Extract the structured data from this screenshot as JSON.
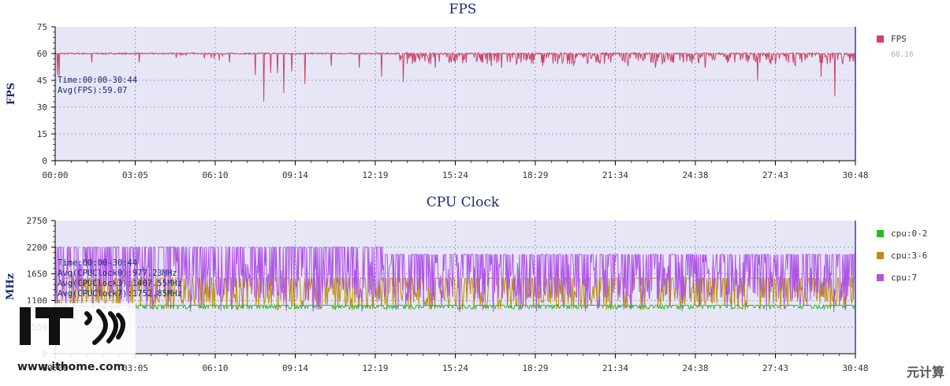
{
  "colors": {
    "plot_bg": "#e6e6f7",
    "grid": "#8a8ac8",
    "title": "#1a2a6c",
    "fps_line": "#cc4466",
    "cpu_0_2": "#22bb22",
    "cpu_3_6": "#bb8f00",
    "cpu_7": "#b054e6"
  },
  "chart_data": [
    {
      "type": "line",
      "title": "FPS",
      "ylabel": "FPS",
      "xlabel": "",
      "ylim": [
        0,
        75
      ],
      "yticks": [
        "75",
        "60",
        "45",
        "30",
        "15",
        "0"
      ],
      "xticks": [
        "00:00",
        "03:05",
        "06:10",
        "09:14",
        "12:19",
        "15:24",
        "18:29",
        "21:34",
        "24:38",
        "27:43",
        "30:48"
      ],
      "annotation": [
        "Time:00:00-30:44",
        "Avg(FPS):59.07"
      ],
      "legend_position": "right",
      "series": [
        {
          "name": "FPS",
          "legend_value": "60.16",
          "baseline": 60,
          "dips": [
            [
              0.3,
              48
            ],
            [
              0.5,
              47
            ],
            [
              4.6,
              55
            ],
            [
              10.5,
              55
            ],
            [
              21.8,
              55
            ],
            [
              25.0,
              48
            ],
            [
              26.1,
              33
            ],
            [
              26.9,
              49
            ],
            [
              27.8,
              49
            ],
            [
              28.6,
              38
            ],
            [
              29.6,
              50
            ],
            [
              31.2,
              43
            ],
            [
              34.5,
              53
            ],
            [
              38.0,
              52
            ],
            [
              40.8,
              47
            ],
            [
              43.5,
              44
            ],
            [
              45.0,
              55
            ],
            [
              46.9,
              54
            ],
            [
              47.5,
              52
            ],
            [
              49.5,
              55
            ],
            [
              54.5,
              53
            ],
            [
              55.8,
              52
            ],
            [
              60.9,
              53
            ],
            [
              62.8,
              54
            ],
            [
              64.8,
              53
            ],
            [
              67.6,
              55
            ],
            [
              71.6,
              53
            ],
            [
              75.0,
              52
            ],
            [
              78.5,
              55
            ],
            [
              81.2,
              52
            ],
            [
              84.9,
              55
            ],
            [
              87.8,
              45
            ],
            [
              90.0,
              54
            ],
            [
              92.5,
              53
            ],
            [
              94.0,
              58
            ],
            [
              95.7,
              47
            ],
            [
              96.5,
              54
            ],
            [
              97.4,
              36
            ],
            [
              98.4,
              54
            ],
            [
              100.0,
              54
            ]
          ]
        }
      ]
    },
    {
      "type": "line",
      "title": "CPU Clock",
      "ylabel": "MHz",
      "xlabel": "",
      "ylim": [
        0,
        2750
      ],
      "yticks": [
        "2750",
        "2200",
        "1650",
        "1100",
        "550",
        "0"
      ],
      "xticks": [
        "00:00",
        "03:05",
        "06:10",
        "09:14",
        "12:19",
        "15:24",
        "18:29",
        "21:34",
        "24:38",
        "27:43",
        "30:48"
      ],
      "annotation": [
        "Time:00:00-30:44",
        "Avg(CPUClock0):977.23MHz",
        "Avg(CPUClock3):1407.55MHz",
        "Avg(CPUClock7):1752.85MHz"
      ],
      "legend_position": "right",
      "series": [
        {
          "name": "cpu:0-2",
          "base": 1000,
          "low": 920
        },
        {
          "name": "cpu:3-6",
          "high": 1560,
          "low": 900
        },
        {
          "name": "cpu:7",
          "high": 2200,
          "low": 1100
        }
      ]
    }
  ],
  "watermark": {
    "brand": "IT之家",
    "site": "www.ithome.com",
    "corner": "元计算"
  }
}
